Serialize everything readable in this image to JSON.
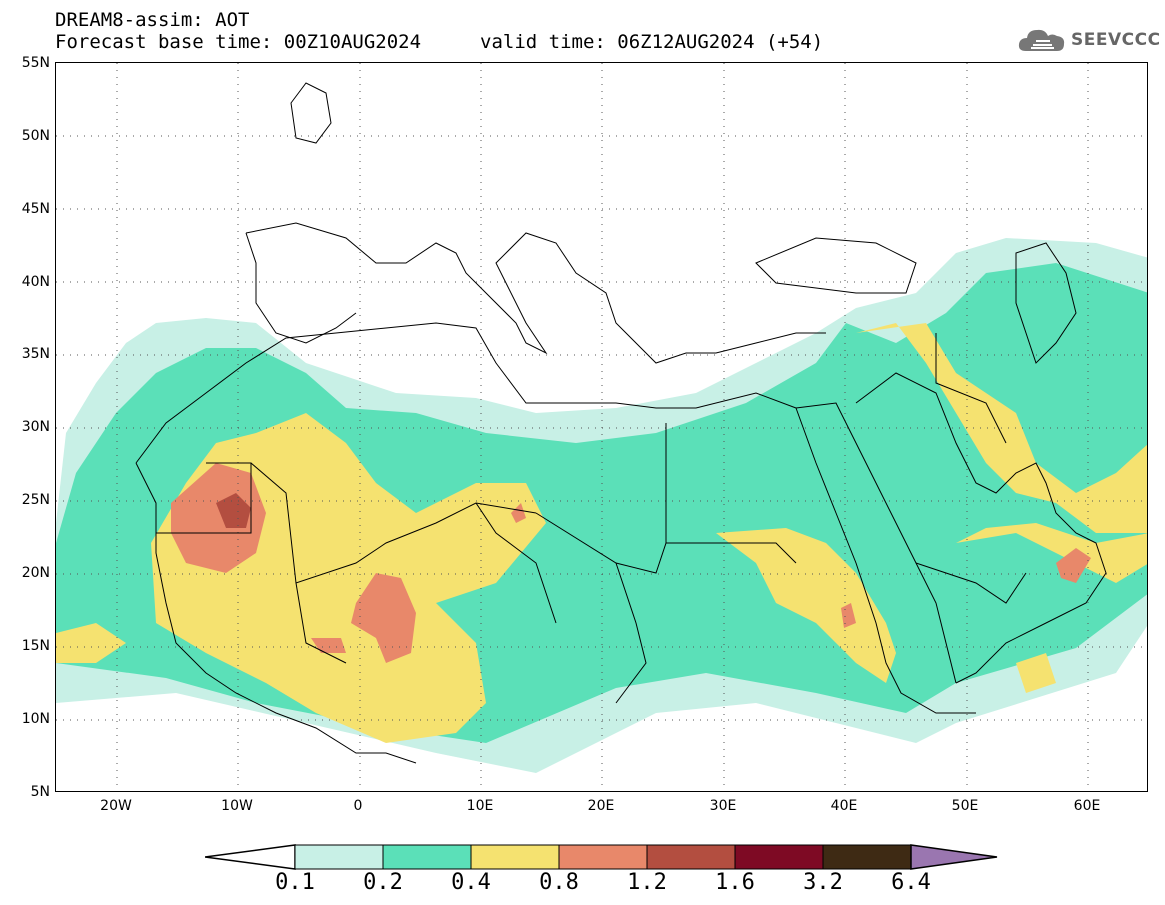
{
  "header": {
    "title": "DREAM8-assim: AOT",
    "base_time": "Forecast base time: 00Z10AUG2024",
    "valid_time": "valid time: 06Z12AUG2024 (+54)"
  },
  "logo": {
    "text": "SEEVCCC",
    "icon": "cloud-icon"
  },
  "map": {
    "lat_labels": [
      "55N",
      "50N",
      "45N",
      "40N",
      "35N",
      "30N",
      "25N",
      "20N",
      "15N",
      "10N",
      "5N"
    ],
    "lon_labels": [
      "20W",
      "10W",
      "0",
      "10E",
      "20E",
      "30E",
      "40E",
      "50E",
      "60E"
    ],
    "lat_range": [
      5,
      55
    ],
    "lon_range": [
      -25,
      65
    ],
    "variable": "AOT"
  },
  "legend": {
    "levels": [
      "0.1",
      "0.2",
      "0.4",
      "0.8",
      "1.2",
      "1.6",
      "3.2",
      "6.4"
    ],
    "colors": [
      "#c8f0e6",
      "#5be0b8",
      "#f5e270",
      "#e8886a",
      "#b34e40",
      "#7e0a24",
      "#3e2a14",
      "#9a76b0"
    ]
  }
}
